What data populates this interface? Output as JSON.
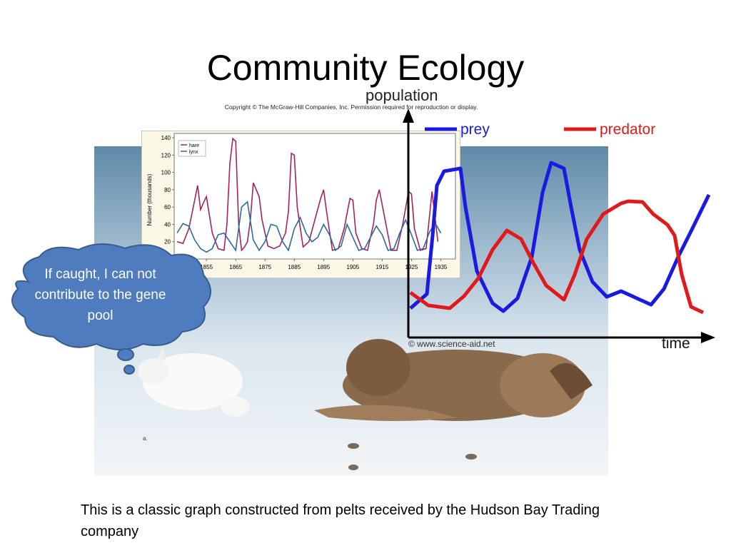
{
  "title": "Community Ecology",
  "caption": "This is a classic graph constructed from pelts received by the Hudson Bay Trading company",
  "thought_bubble": "If caught, I can not contribute to the gene pool",
  "figure": {
    "copyright": "Copyright © The McGraw-Hill Companies, Inc. Permission required for reproduction or display.",
    "photo_label": "a.",
    "hare_lynx_chart": {
      "type": "line",
      "ylabel": "Number (thousands)",
      "xlim": [
        1844,
        1940
      ],
      "ylim": [
        0,
        140
      ],
      "yticks": [
        20,
        40,
        60,
        80,
        100,
        120,
        140
      ],
      "xticks": [
        1855,
        1865,
        1875,
        1885,
        1895,
        1905,
        1915,
        1925,
        1935
      ],
      "series": [
        {
          "name": "hare",
          "color": "#a3245c",
          "x": [
            1845,
            1847,
            1849,
            1851,
            1852,
            1853,
            1854,
            1855,
            1857,
            1859,
            1861,
            1862,
            1863,
            1864,
            1865,
            1866,
            1867,
            1868,
            1869,
            1870,
            1871,
            1872,
            1873,
            1874,
            1876,
            1878,
            1880,
            1882,
            1883,
            1884,
            1885,
            1886,
            1888,
            1890,
            1892,
            1894,
            1895,
            1896,
            1898,
            1900,
            1902,
            1904,
            1905,
            1906,
            1908,
            1910,
            1912,
            1913,
            1914,
            1916,
            1918,
            1920,
            1922,
            1924,
            1925,
            1926,
            1928,
            1930,
            1932,
            1934
          ],
          "values": [
            20,
            18,
            35,
            68,
            85,
            57,
            65,
            72,
            30,
            12,
            10,
            40,
            110,
            139,
            136,
            40,
            10,
            14,
            20,
            45,
            88,
            80,
            72,
            45,
            15,
            12,
            15,
            30,
            55,
            122,
            120,
            60,
            14,
            20,
            45,
            70,
            80,
            55,
            10,
            12,
            35,
            70,
            68,
            30,
            12,
            10,
            40,
            68,
            80,
            45,
            10,
            10,
            40,
            78,
            75,
            35,
            10,
            12,
            78,
            20
          ]
        },
        {
          "name": "lynx",
          "color": "#2a6c9c",
          "x": [
            1845,
            1847,
            1849,
            1851,
            1853,
            1855,
            1857,
            1859,
            1861,
            1863,
            1865,
            1867,
            1869,
            1871,
            1873,
            1875,
            1877,
            1879,
            1881,
            1883,
            1885,
            1887,
            1889,
            1891,
            1893,
            1895,
            1897,
            1899,
            1901,
            1903,
            1905,
            1907,
            1909,
            1911,
            1913,
            1915,
            1917,
            1919,
            1921,
            1923,
            1925,
            1927,
            1929,
            1931,
            1933,
            1935
          ],
          "values": [
            30,
            41,
            38,
            22,
            12,
            8,
            12,
            28,
            30,
            20,
            10,
            60,
            66,
            22,
            10,
            20,
            40,
            38,
            20,
            10,
            35,
            48,
            30,
            20,
            25,
            40,
            28,
            10,
            15,
            40,
            25,
            10,
            12,
            25,
            38,
            28,
            10,
            12,
            30,
            45,
            28,
            10,
            12,
            30,
            42,
            30
          ]
        }
      ]
    },
    "predator_prey_chart": {
      "ylabel": "population",
      "xlabel": "time",
      "legend": [
        {
          "name": "prey",
          "color": "#1a1ae0"
        },
        {
          "name": "predator",
          "color": "#e01a1a"
        }
      ],
      "credit": "© www.science-aid.net"
    }
  }
}
